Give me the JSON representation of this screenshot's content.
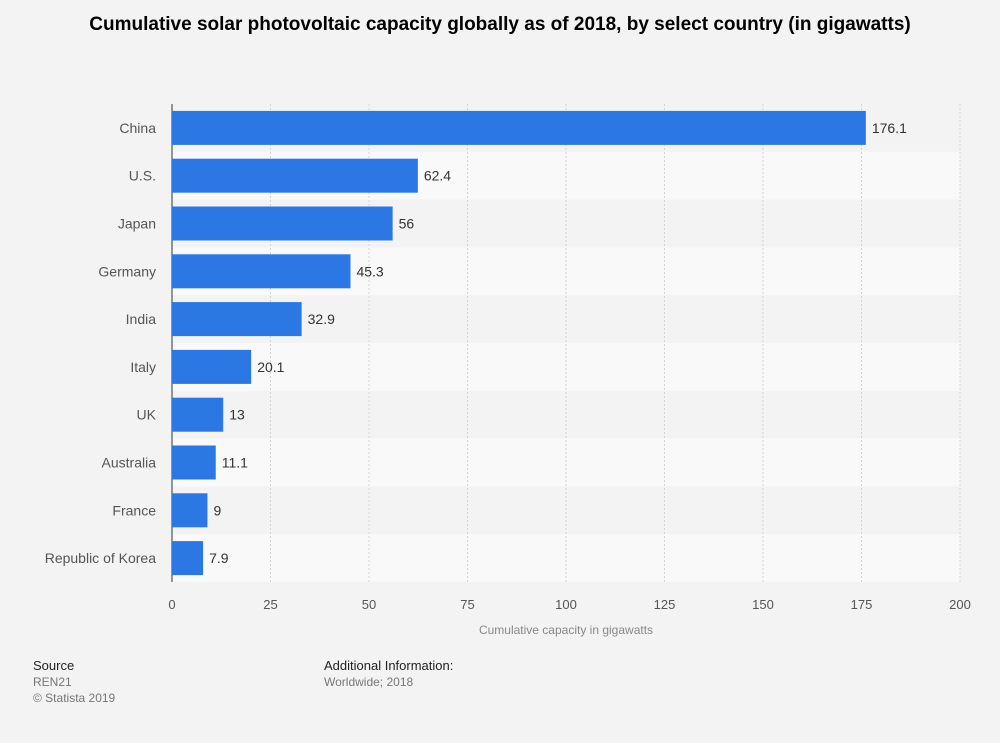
{
  "chart_data": {
    "type": "bar",
    "orientation": "horizontal",
    "title": "Cumulative solar photovoltaic capacity globally as of 2018, by select country (in gigawatts)",
    "xlabel": "Cumulative capacity in gigawatts",
    "ylabel": "",
    "categories": [
      "China",
      "U.S.",
      "Japan",
      "Germany",
      "India",
      "Italy",
      "UK",
      "Australia",
      "France",
      "Republic of Korea"
    ],
    "values": [
      176.1,
      62.4,
      56,
      45.3,
      32.9,
      20.1,
      13,
      11.1,
      9,
      7.9
    ],
    "value_labels": [
      "176.1",
      "62.4",
      "56",
      "45.3",
      "32.9",
      "20.1",
      "13",
      "11.1",
      "9",
      "7.9"
    ],
    "xlim": [
      0,
      200
    ],
    "xticks": [
      0,
      25,
      50,
      75,
      100,
      125,
      150,
      175,
      200
    ],
    "grid": true,
    "bar_color": "#2b78e4",
    "band_color": "#f9f9f9",
    "background_color": "#f3f3f3"
  },
  "footer": {
    "source_heading": "Source",
    "source_text": "REN21",
    "copyright": "© Statista 2019",
    "info_heading": "Additional Information:",
    "info_text": "Worldwide; 2018"
  }
}
